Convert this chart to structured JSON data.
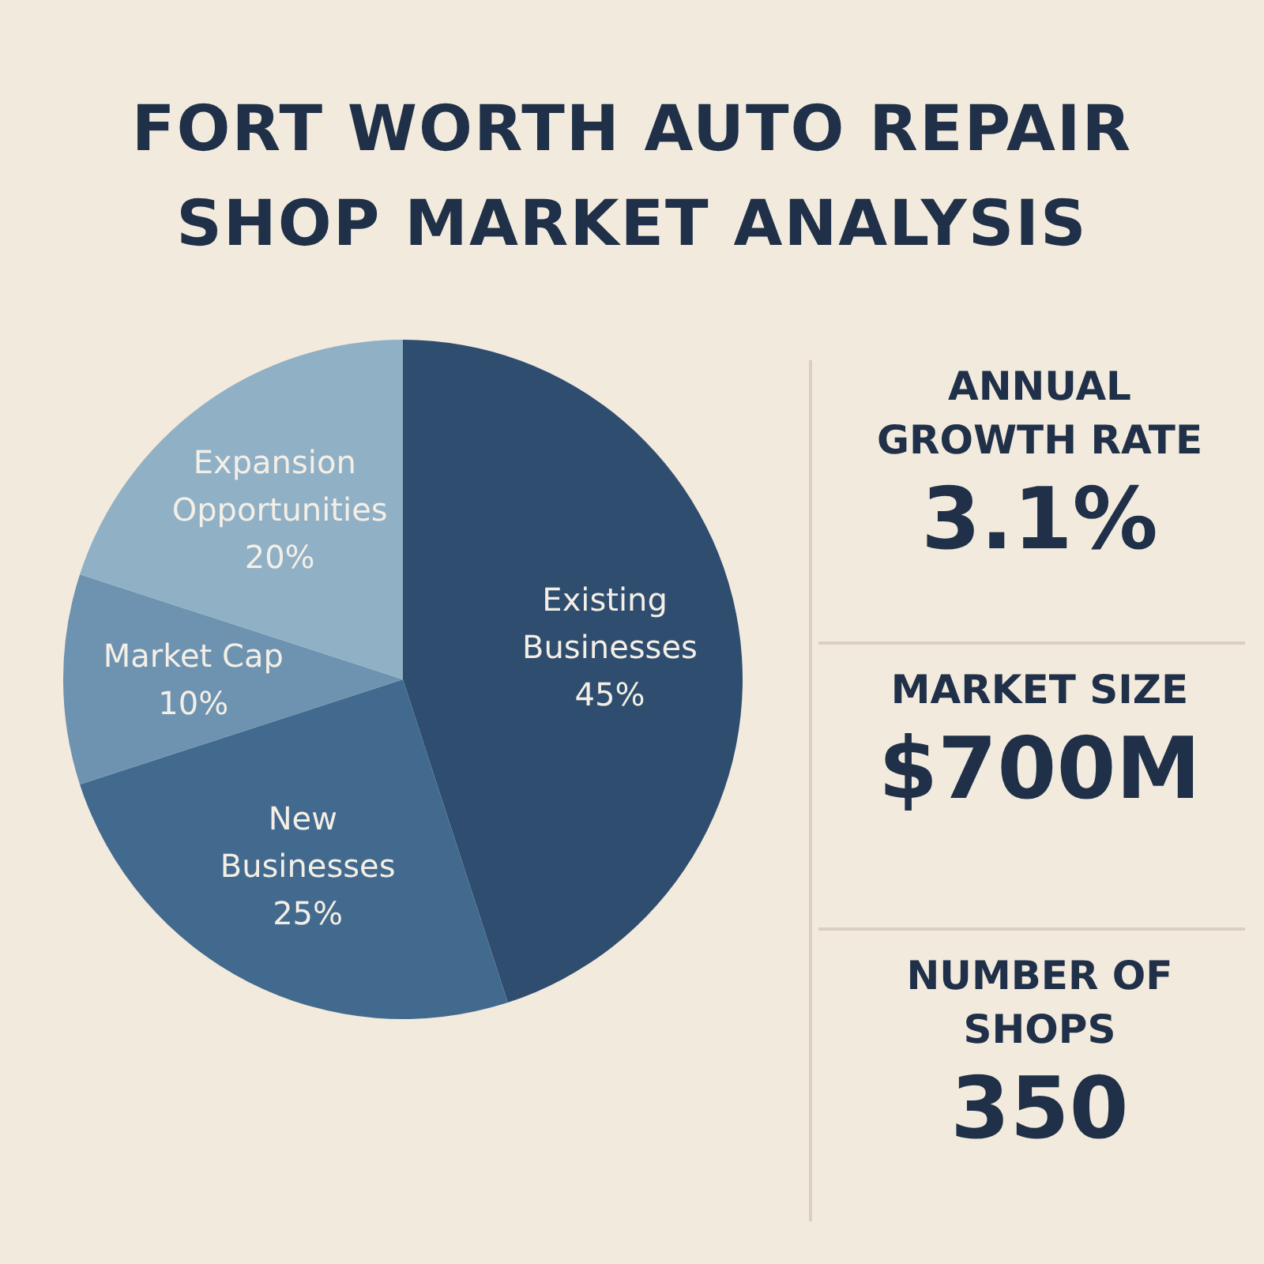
{
  "chart_data": [
    {
      "type": "pie",
      "title": "FORT  WORTH AUTO REPAIR SHOP MARKET ANALYSIS",
      "categories": [
        "Existing Businesses",
        "New Businesses",
        "Market Cap",
        "Expansion Opportunities"
      ],
      "values": [
        45,
        25,
        10,
        20
      ],
      "value_labels": [
        "45%",
        "25%",
        "10%",
        "20%"
      ],
      "colors": [
        "#2f4d6e",
        "#426a8e",
        "#6d93b1",
        "#90b0c6"
      ]
    },
    {
      "type": "other",
      "annotations": [
        "ANNUAL GROWTH RATE",
        "3.1%",
        "MARKET SIZE",
        "$700M",
        "NUMBER OF SHOPS",
        "350"
      ]
    }
  ]
}
